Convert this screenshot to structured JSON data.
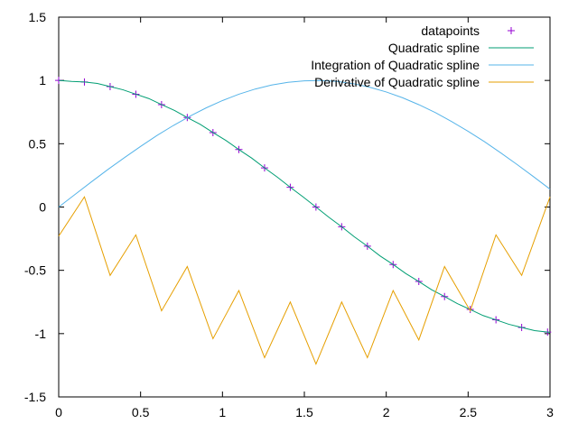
{
  "chart_data": {
    "type": "line",
    "title": "",
    "xlabel": "",
    "ylabel": "",
    "xlim": [
      0,
      3
    ],
    "ylim": [
      -1.5,
      1.5
    ],
    "x_ticks": [
      0,
      0.5,
      1,
      1.5,
      2,
      2.5,
      3
    ],
    "x_tick_labels": [
      "0",
      "0.5",
      "1",
      "1.5",
      "2",
      "2.5",
      "3"
    ],
    "y_ticks": [
      -1.5,
      -1,
      -0.5,
      0,
      0.5,
      1,
      1.5
    ],
    "y_tick_labels": [
      "-1.5",
      "-1",
      "-0.5",
      "0",
      "0.5",
      "1",
      "1.5"
    ],
    "grid": false,
    "legend_position": "top-right",
    "series": [
      {
        "name": "datapoints",
        "kind": "points",
        "marker": "plus",
        "color": "#9400d3",
        "x": [
          0,
          0.157,
          0.314,
          0.471,
          0.628,
          0.785,
          0.942,
          1.1,
          1.257,
          1.414,
          1.571,
          1.728,
          1.885,
          2.042,
          2.199,
          2.356,
          2.513,
          2.67,
          2.827,
          2.985
        ],
        "y": [
          1.0,
          0.988,
          0.951,
          0.891,
          0.809,
          0.707,
          0.588,
          0.454,
          0.309,
          0.156,
          0.0,
          -0.156,
          -0.309,
          -0.454,
          -0.588,
          -0.707,
          -0.809,
          -0.891,
          -0.951,
          -0.988
        ]
      },
      {
        "name": "Quadratic spline",
        "kind": "line",
        "color": "#009e73",
        "x": [
          0,
          0.079,
          0.157,
          0.236,
          0.314,
          0.393,
          0.471,
          0.55,
          0.628,
          0.707,
          0.785,
          0.864,
          0.942,
          1.021,
          1.1,
          1.178,
          1.257,
          1.335,
          1.414,
          1.492,
          1.571,
          1.649,
          1.728,
          1.806,
          1.885,
          1.963,
          2.042,
          2.12,
          2.199,
          2.277,
          2.356,
          2.434,
          2.513,
          2.591,
          2.67,
          2.748,
          2.827,
          2.906,
          2.985,
          3.0
        ],
        "y": [
          1.0,
          0.992,
          0.988,
          0.976,
          0.951,
          0.926,
          0.891,
          0.857,
          0.809,
          0.763,
          0.707,
          0.653,
          0.588,
          0.526,
          0.454,
          0.387,
          0.309,
          0.236,
          0.156,
          0.08,
          0.0,
          -0.08,
          -0.156,
          -0.236,
          -0.309,
          -0.387,
          -0.454,
          -0.526,
          -0.588,
          -0.653,
          -0.707,
          -0.763,
          -0.809,
          -0.857,
          -0.891,
          -0.926,
          -0.951,
          -0.976,
          -0.988,
          -0.99
        ]
      },
      {
        "name": "Integration of Quadratic spline",
        "kind": "line",
        "color": "#56b4e9",
        "x": [
          0,
          0.1,
          0.2,
          0.3,
          0.4,
          0.5,
          0.6,
          0.7,
          0.8,
          0.9,
          1.0,
          1.1,
          1.2,
          1.3,
          1.4,
          1.5,
          1.6,
          1.7,
          1.8,
          1.9,
          2.0,
          2.1,
          2.2,
          2.3,
          2.4,
          2.5,
          2.6,
          2.7,
          2.8,
          2.9,
          3.0
        ],
        "y": [
          0.0,
          0.1,
          0.199,
          0.296,
          0.389,
          0.479,
          0.565,
          0.644,
          0.717,
          0.783,
          0.841,
          0.891,
          0.932,
          0.964,
          0.985,
          0.997,
          0.9995,
          0.992,
          0.974,
          0.946,
          0.909,
          0.863,
          0.808,
          0.746,
          0.675,
          0.598,
          0.516,
          0.427,
          0.335,
          0.239,
          0.141
        ]
      },
      {
        "name": "Derivative of Quadratic spline",
        "kind": "line",
        "color": "#e69f00",
        "x": [
          0,
          0.157,
          0.314,
          0.471,
          0.628,
          0.785,
          0.942,
          1.1,
          1.257,
          1.414,
          1.571,
          1.728,
          1.885,
          2.042,
          2.199,
          2.356,
          2.513,
          2.67,
          2.827,
          3.0
        ],
        "y": [
          -0.23,
          0.08,
          -0.54,
          -0.22,
          -0.82,
          -0.47,
          -1.04,
          -0.66,
          -1.19,
          -0.75,
          -1.24,
          -0.75,
          -1.19,
          -0.66,
          -1.05,
          -0.47,
          -0.82,
          -0.22,
          -0.54,
          0.08
        ]
      }
    ]
  }
}
